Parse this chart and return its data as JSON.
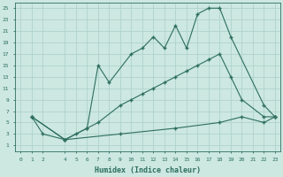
{
  "xlabel": "Humidex (Indice chaleur)",
  "bg_color": "#cce8e0",
  "line_color": "#2d6e5e",
  "grid_color": "#aacfc8",
  "xlim": [
    -0.5,
    23.5
  ],
  "ylim": [
    0,
    26
  ],
  "xticks": [
    0,
    1,
    2,
    4,
    5,
    6,
    7,
    8,
    9,
    10,
    11,
    12,
    13,
    14,
    15,
    16,
    17,
    18,
    19,
    20,
    21,
    22,
    23
  ],
  "yticks": [
    1,
    3,
    5,
    7,
    9,
    11,
    13,
    15,
    17,
    19,
    21,
    23,
    25
  ],
  "line1_x": [
    1,
    2,
    4,
    5,
    6,
    7,
    8,
    10,
    11,
    12,
    13,
    14,
    15,
    16,
    17,
    18,
    19,
    22,
    23
  ],
  "line1_y": [
    6,
    3,
    2,
    3,
    4,
    15,
    12,
    17,
    18,
    20,
    18,
    22,
    18,
    24,
    25,
    25,
    20,
    8,
    6
  ],
  "line2_x": [
    1,
    4,
    6,
    7,
    9,
    10,
    11,
    12,
    13,
    14,
    15,
    16,
    17,
    18,
    19,
    20,
    22,
    23
  ],
  "line2_y": [
    6,
    2,
    4,
    5,
    8,
    9,
    10,
    11,
    12,
    13,
    14,
    15,
    16,
    17,
    13,
    9,
    6,
    6
  ],
  "line3_x": [
    1,
    4,
    9,
    14,
    18,
    20,
    22,
    23
  ],
  "line3_y": [
    6,
    2,
    3,
    4,
    5,
    6,
    5,
    6
  ]
}
